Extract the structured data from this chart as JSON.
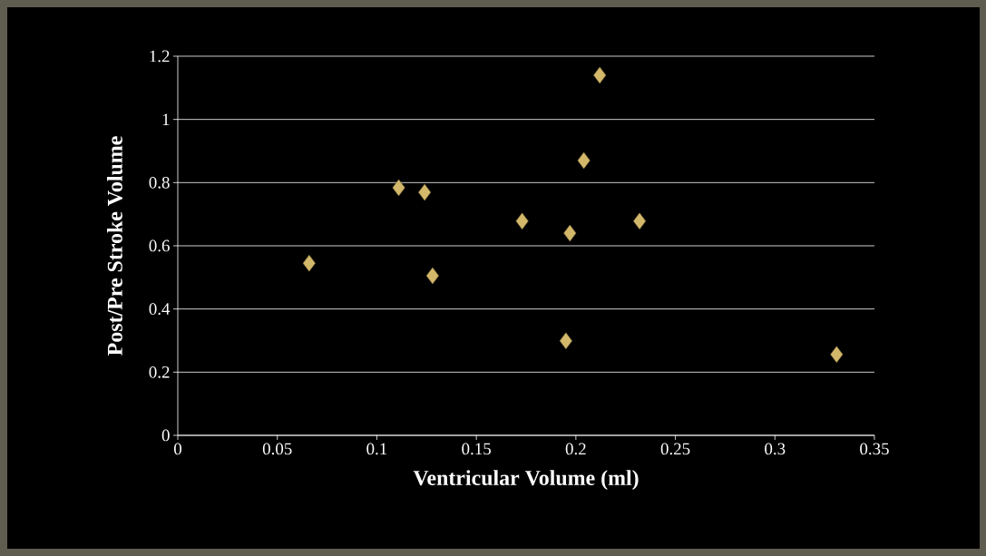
{
  "chart_data": {
    "type": "scatter",
    "xlabel": "Ventricular Volume (ml)",
    "ylabel": "Post/Pre Stroke Volume",
    "x": [
      0.066,
      0.111,
      0.124,
      0.128,
      0.173,
      0.197,
      0.204,
      0.212,
      0.232,
      0.195,
      0.331
    ],
    "values": [
      0.545,
      0.784,
      0.769,
      0.505,
      0.678,
      0.64,
      0.87,
      1.14,
      0.678,
      0.299,
      0.256
    ],
    "color": "#d4b86a",
    "marker": "diamond",
    "grid": "y",
    "xlim": [
      0,
      0.35
    ],
    "xticks": [
      0,
      0.05,
      0.1,
      0.15,
      0.2,
      0.25,
      0.3,
      0.35
    ],
    "ylim": [
      0,
      1.2
    ],
    "yticks": [
      0,
      0.2,
      0.4,
      0.6,
      0.8,
      1,
      1.2
    ]
  }
}
